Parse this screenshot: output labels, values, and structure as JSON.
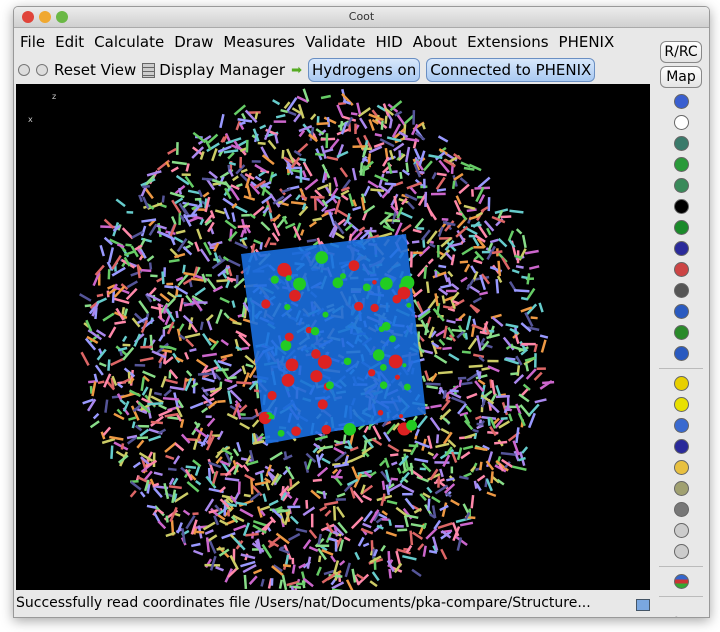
{
  "window": {
    "title": "Coot"
  },
  "menu": [
    "File",
    "Edit",
    "Calculate",
    "Draw",
    "Measures",
    "Validate",
    "HID",
    "About",
    "Extensions",
    "PHENIX"
  ],
  "toolbar": {
    "reset_view": "Reset View",
    "display_manager": "Display Manager",
    "hydrogens": "Hydrogens on",
    "phenix": "Connected to PHENIX"
  },
  "side": {
    "rrc": "R/RC",
    "map": "Map",
    "icons_group1": [
      "sphere-refine-icon",
      "clock-icon",
      "anchor-icon",
      "rotamer-green-icon",
      "flip-icon",
      "triangle-more-icon",
      "jiggle-fit-icon",
      "backrub-icon",
      "torsion-icon",
      "rotate-translate-icon",
      "edit-chi-icon",
      "side-chain-icon",
      "ligand-fit-icon"
    ],
    "icons_group2": [
      "radiation-small-icon",
      "radiation-icon",
      "add-atom-icon",
      "add-terminal-icon",
      "add-box-icon",
      "stamp-icon",
      "trash-icon",
      "undo-icon",
      "redo-icon"
    ],
    "icons_group3": [
      "flag-icon"
    ],
    "play": "play-icon"
  },
  "axes": {
    "z": "z",
    "x": "x"
  },
  "status": "Successfully read coordinates file /Users/nat/Documents/pka-compare/Structure..."
}
